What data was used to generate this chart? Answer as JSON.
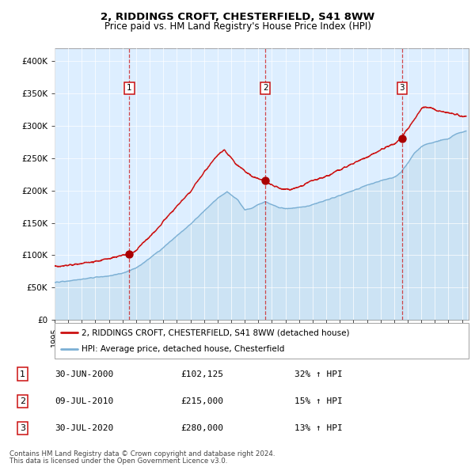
{
  "title": "2, RIDDINGS CROFT, CHESTERFIELD, S41 8WW",
  "subtitle": "Price paid vs. HM Land Registry's House Price Index (HPI)",
  "hpi_color": "#7bafd4",
  "hpi_fill_color": "#c5dff0",
  "price_color": "#cc1111",
  "bg_color": "#ddeeff",
  "sale_dates_decimal": [
    2000.497,
    2010.521,
    2020.578
  ],
  "sale_prices": [
    102125,
    215000,
    280000
  ],
  "sale_labels": [
    "1",
    "2",
    "3"
  ],
  "legend_price": "2, RIDDINGS CROFT, CHESTERFIELD, S41 8WW (detached house)",
  "legend_hpi": "HPI: Average price, detached house, Chesterfield",
  "table_data": [
    [
      "1",
      "30-JUN-2000",
      "£102,125",
      "32% ↑ HPI"
    ],
    [
      "2",
      "09-JUL-2010",
      "£215,000",
      "15% ↑ HPI"
    ],
    [
      "3",
      "30-JUL-2020",
      "£280,000",
      "13% ↑ HPI"
    ]
  ],
  "footnote1": "Contains HM Land Registry data © Crown copyright and database right 2024.",
  "footnote2": "This data is licensed under the Open Government Licence v3.0.",
  "ylim": [
    0,
    420000
  ],
  "yticks": [
    0,
    50000,
    100000,
    150000,
    200000,
    250000,
    300000,
    350000,
    400000
  ],
  "ytick_labels": [
    "£0",
    "£50K",
    "£100K",
    "£150K",
    "£200K",
    "£250K",
    "£300K",
    "£350K",
    "£400K"
  ],
  "xstart": 1995.0,
  "xend": 2025.5,
  "hpi_key_years": [
    1995.0,
    1996.0,
    1997.0,
    1998.0,
    1999.0,
    2000.0,
    2001.0,
    2002.0,
    2003.0,
    2004.0,
    2005.0,
    2006.0,
    2007.0,
    2007.7,
    2008.5,
    2009.0,
    2009.5,
    2010.0,
    2010.5,
    2011.0,
    2011.5,
    2012.0,
    2012.5,
    2013.0,
    2013.5,
    2014.0,
    2015.0,
    2016.0,
    2017.0,
    2018.0,
    2019.0,
    2019.5,
    2020.0,
    2020.5,
    2021.0,
    2021.5,
    2022.0,
    2022.5,
    2023.0,
    2023.5,
    2024.0,
    2024.5,
    2025.3
  ],
  "hpi_key_vals": [
    58000,
    60000,
    63000,
    66000,
    68000,
    72000,
    80000,
    95000,
    112000,
    130000,
    148000,
    168000,
    188000,
    198000,
    185000,
    170000,
    172000,
    178000,
    183000,
    178000,
    174000,
    172000,
    173000,
    174000,
    175000,
    178000,
    185000,
    192000,
    200000,
    208000,
    215000,
    218000,
    220000,
    228000,
    242000,
    258000,
    268000,
    272000,
    275000,
    278000,
    280000,
    287000,
    292000
  ],
  "price_key_years": [
    1995.0,
    1996.0,
    1997.0,
    1998.0,
    1999.0,
    2000.0,
    2000.5,
    2001.0,
    2002.0,
    2003.0,
    2004.0,
    2005.0,
    2006.0,
    2007.0,
    2007.5,
    2008.0,
    2008.5,
    2009.0,
    2009.5,
    2010.0,
    2010.5,
    2011.0,
    2011.5,
    2012.0,
    2012.5,
    2013.0,
    2014.0,
    2015.0,
    2016.0,
    2017.0,
    2018.0,
    2019.0,
    2019.5,
    2020.0,
    2020.5,
    2021.0,
    2021.5,
    2022.0,
    2022.3,
    2022.7,
    2023.0,
    2023.5,
    2024.0,
    2024.5,
    2025.0,
    2025.3
  ],
  "price_key_vals": [
    82000,
    84000,
    87000,
    90000,
    95000,
    100000,
    102000,
    108000,
    128000,
    152000,
    175000,
    198000,
    228000,
    255000,
    262000,
    250000,
    238000,
    230000,
    222000,
    218000,
    215000,
    208000,
    204000,
    202000,
    202000,
    205000,
    215000,
    222000,
    232000,
    242000,
    252000,
    262000,
    268000,
    272000,
    280000,
    295000,
    310000,
    326000,
    330000,
    328000,
    325000,
    322000,
    320000,
    318000,
    315000,
    313000
  ]
}
